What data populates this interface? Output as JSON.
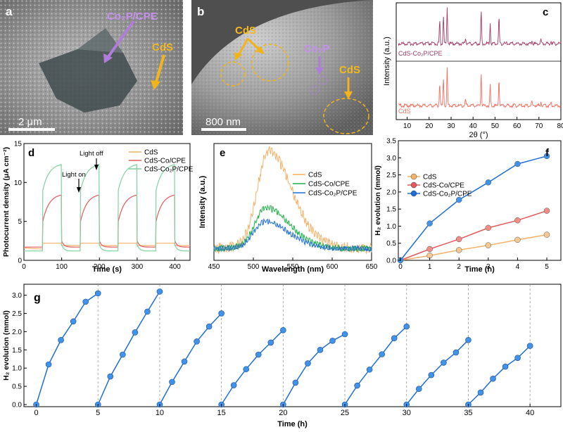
{
  "colors": {
    "cds": "#f3b36c",
    "cds_co_cpe": "#e4595b",
    "cds_co2p_cpe": "#1f6ed6",
    "panel_d_green": "#7fd39f",
    "panel_e_green": "#24b24b",
    "xrd_top": "#a23a6a",
    "xrd_bottom": "#ef6f60",
    "arrow_purple": "#b07ddb",
    "arrow_yellow": "#f2b418"
  },
  "panels": {
    "a": {
      "label": "a",
      "annotations": [
        "Co₂P/CPE",
        "CdS"
      ],
      "scale_bar": "2 μm"
    },
    "b": {
      "label": "b",
      "annotations": [
        "CdS",
        "Co₂P",
        "CdS"
      ],
      "scale_bar": "800 nm"
    }
  },
  "chart_data": [
    {
      "panel": "c",
      "type": "line",
      "title": "",
      "xlabel": "2θ (°)",
      "ylabel": "Intensity (a.u.)",
      "xlim": [
        5,
        80
      ],
      "xticks": [
        "10",
        "20",
        "30",
        "40",
        "50",
        "60",
        "70",
        "80"
      ],
      "peaks_2theta": [
        24.8,
        26.5,
        28.2,
        36.6,
        43.7,
        47.8,
        51.8,
        66.8,
        70.9,
        75.5
      ],
      "series": [
        {
          "name": "CdS-Co₂P/CPE",
          "peak_heights": [
            0.55,
            0.7,
            0.9,
            0.15,
            0.8,
            0.5,
            0.65,
            0.1,
            0.1,
            0.08
          ]
        },
        {
          "name": "CdS",
          "peak_heights": [
            0.55,
            0.7,
            0.9,
            0.15,
            0.8,
            0.5,
            0.65,
            0.1,
            0.1,
            0.08
          ]
        }
      ]
    },
    {
      "panel": "d",
      "type": "line",
      "xlabel": "Time (s)",
      "ylabel": "Photocurrent density (μA cm⁻²)",
      "xlim": [
        0,
        440
      ],
      "ylim": [
        0,
        15
      ],
      "xticks": [
        0,
        100,
        200,
        300,
        400
      ],
      "yticks": [
        0,
        5,
        10,
        15
      ],
      "annotations": [
        "Light on",
        "Light off"
      ],
      "light_cycles": [
        [
          50,
          100
        ],
        [
          150,
          200
        ],
        [
          250,
          300
        ],
        [
          350,
          400
        ]
      ],
      "series": [
        {
          "name": "CdS",
          "dark": 1.4,
          "light": 2.2
        },
        {
          "name": "CdS-Co/CPE",
          "dark": 1.7,
          "light_start": 5.0,
          "light_end": 8.4
        },
        {
          "name": "CdS-Co₂P/CPE",
          "dark": 1.2,
          "light_start": 9.0,
          "light_end": 12.3
        }
      ]
    },
    {
      "panel": "e",
      "type": "line",
      "xlabel": "Wavelength (nm)",
      "ylabel": "Intensity (a.u.)",
      "xlim": [
        450,
        650
      ],
      "xticks": [
        450,
        500,
        550,
        600,
        650
      ],
      "series": [
        {
          "name": "CdS",
          "peak_nm": 519,
          "peak_rel": 1.0
        },
        {
          "name": "CdS-Co/CPE",
          "peak_nm": 516,
          "peak_rel": 0.42
        },
        {
          "name": "CdS-Co₂P/CPE",
          "peak_nm": 515,
          "peak_rel": 0.28
        }
      ]
    },
    {
      "panel": "f",
      "type": "line",
      "xlabel": "Time (h)",
      "ylabel": "H₂ evolution (mmol)",
      "xlim": [
        0,
        5
      ],
      "ylim": [
        0,
        3.5
      ],
      "xticks": [
        0,
        1,
        2,
        3,
        4,
        5
      ],
      "yticks": [
        "0.0",
        "0.5",
        "1.0",
        "1.5",
        "2.0",
        "2.5",
        "3.0",
        "3.5"
      ],
      "x": [
        0,
        1,
        2,
        3,
        4,
        5
      ],
      "series": [
        {
          "name": "CdS",
          "values": [
            0,
            0.14,
            0.3,
            0.44,
            0.6,
            0.75
          ]
        },
        {
          "name": "CdS-Co/CPE",
          "values": [
            0,
            0.33,
            0.62,
            0.95,
            1.17,
            1.45
          ]
        },
        {
          "name": "CdS-Co₂P/CPE",
          "values": [
            0,
            1.08,
            1.77,
            2.28,
            2.82,
            3.05
          ]
        }
      ]
    },
    {
      "panel": "g",
      "type": "line",
      "xlabel": "Time (h)",
      "ylabel": "H₂ evolution (mmol)",
      "xlim": [
        -1,
        42.5
      ],
      "ylim": [
        0,
        3.3
      ],
      "xticks": [
        0,
        5,
        10,
        15,
        20,
        25,
        30,
        35,
        40
      ],
      "yticks": [
        "0.0",
        "0.5",
        "1.0",
        "1.5",
        "2.0",
        "2.5",
        "3.0"
      ],
      "cycles": [
        [
          0,
          1.1,
          1.77,
          2.28,
          2.82,
          3.05
        ],
        [
          0,
          0.77,
          1.37,
          1.98,
          2.55,
          3.1
        ],
        [
          0,
          0.62,
          1.18,
          1.73,
          2.14,
          2.5
        ],
        [
          0,
          0.53,
          0.97,
          1.37,
          1.7,
          2.04
        ],
        [
          0,
          0.6,
          1.13,
          1.5,
          1.75,
          1.93
        ],
        [
          0,
          0.52,
          0.96,
          1.38,
          1.82,
          2.14
        ],
        [
          0,
          0.43,
          0.81,
          1.15,
          1.43,
          1.77
        ],
        [
          0,
          0.33,
          0.71,
          1.04,
          1.28,
          1.61
        ]
      ]
    }
  ]
}
